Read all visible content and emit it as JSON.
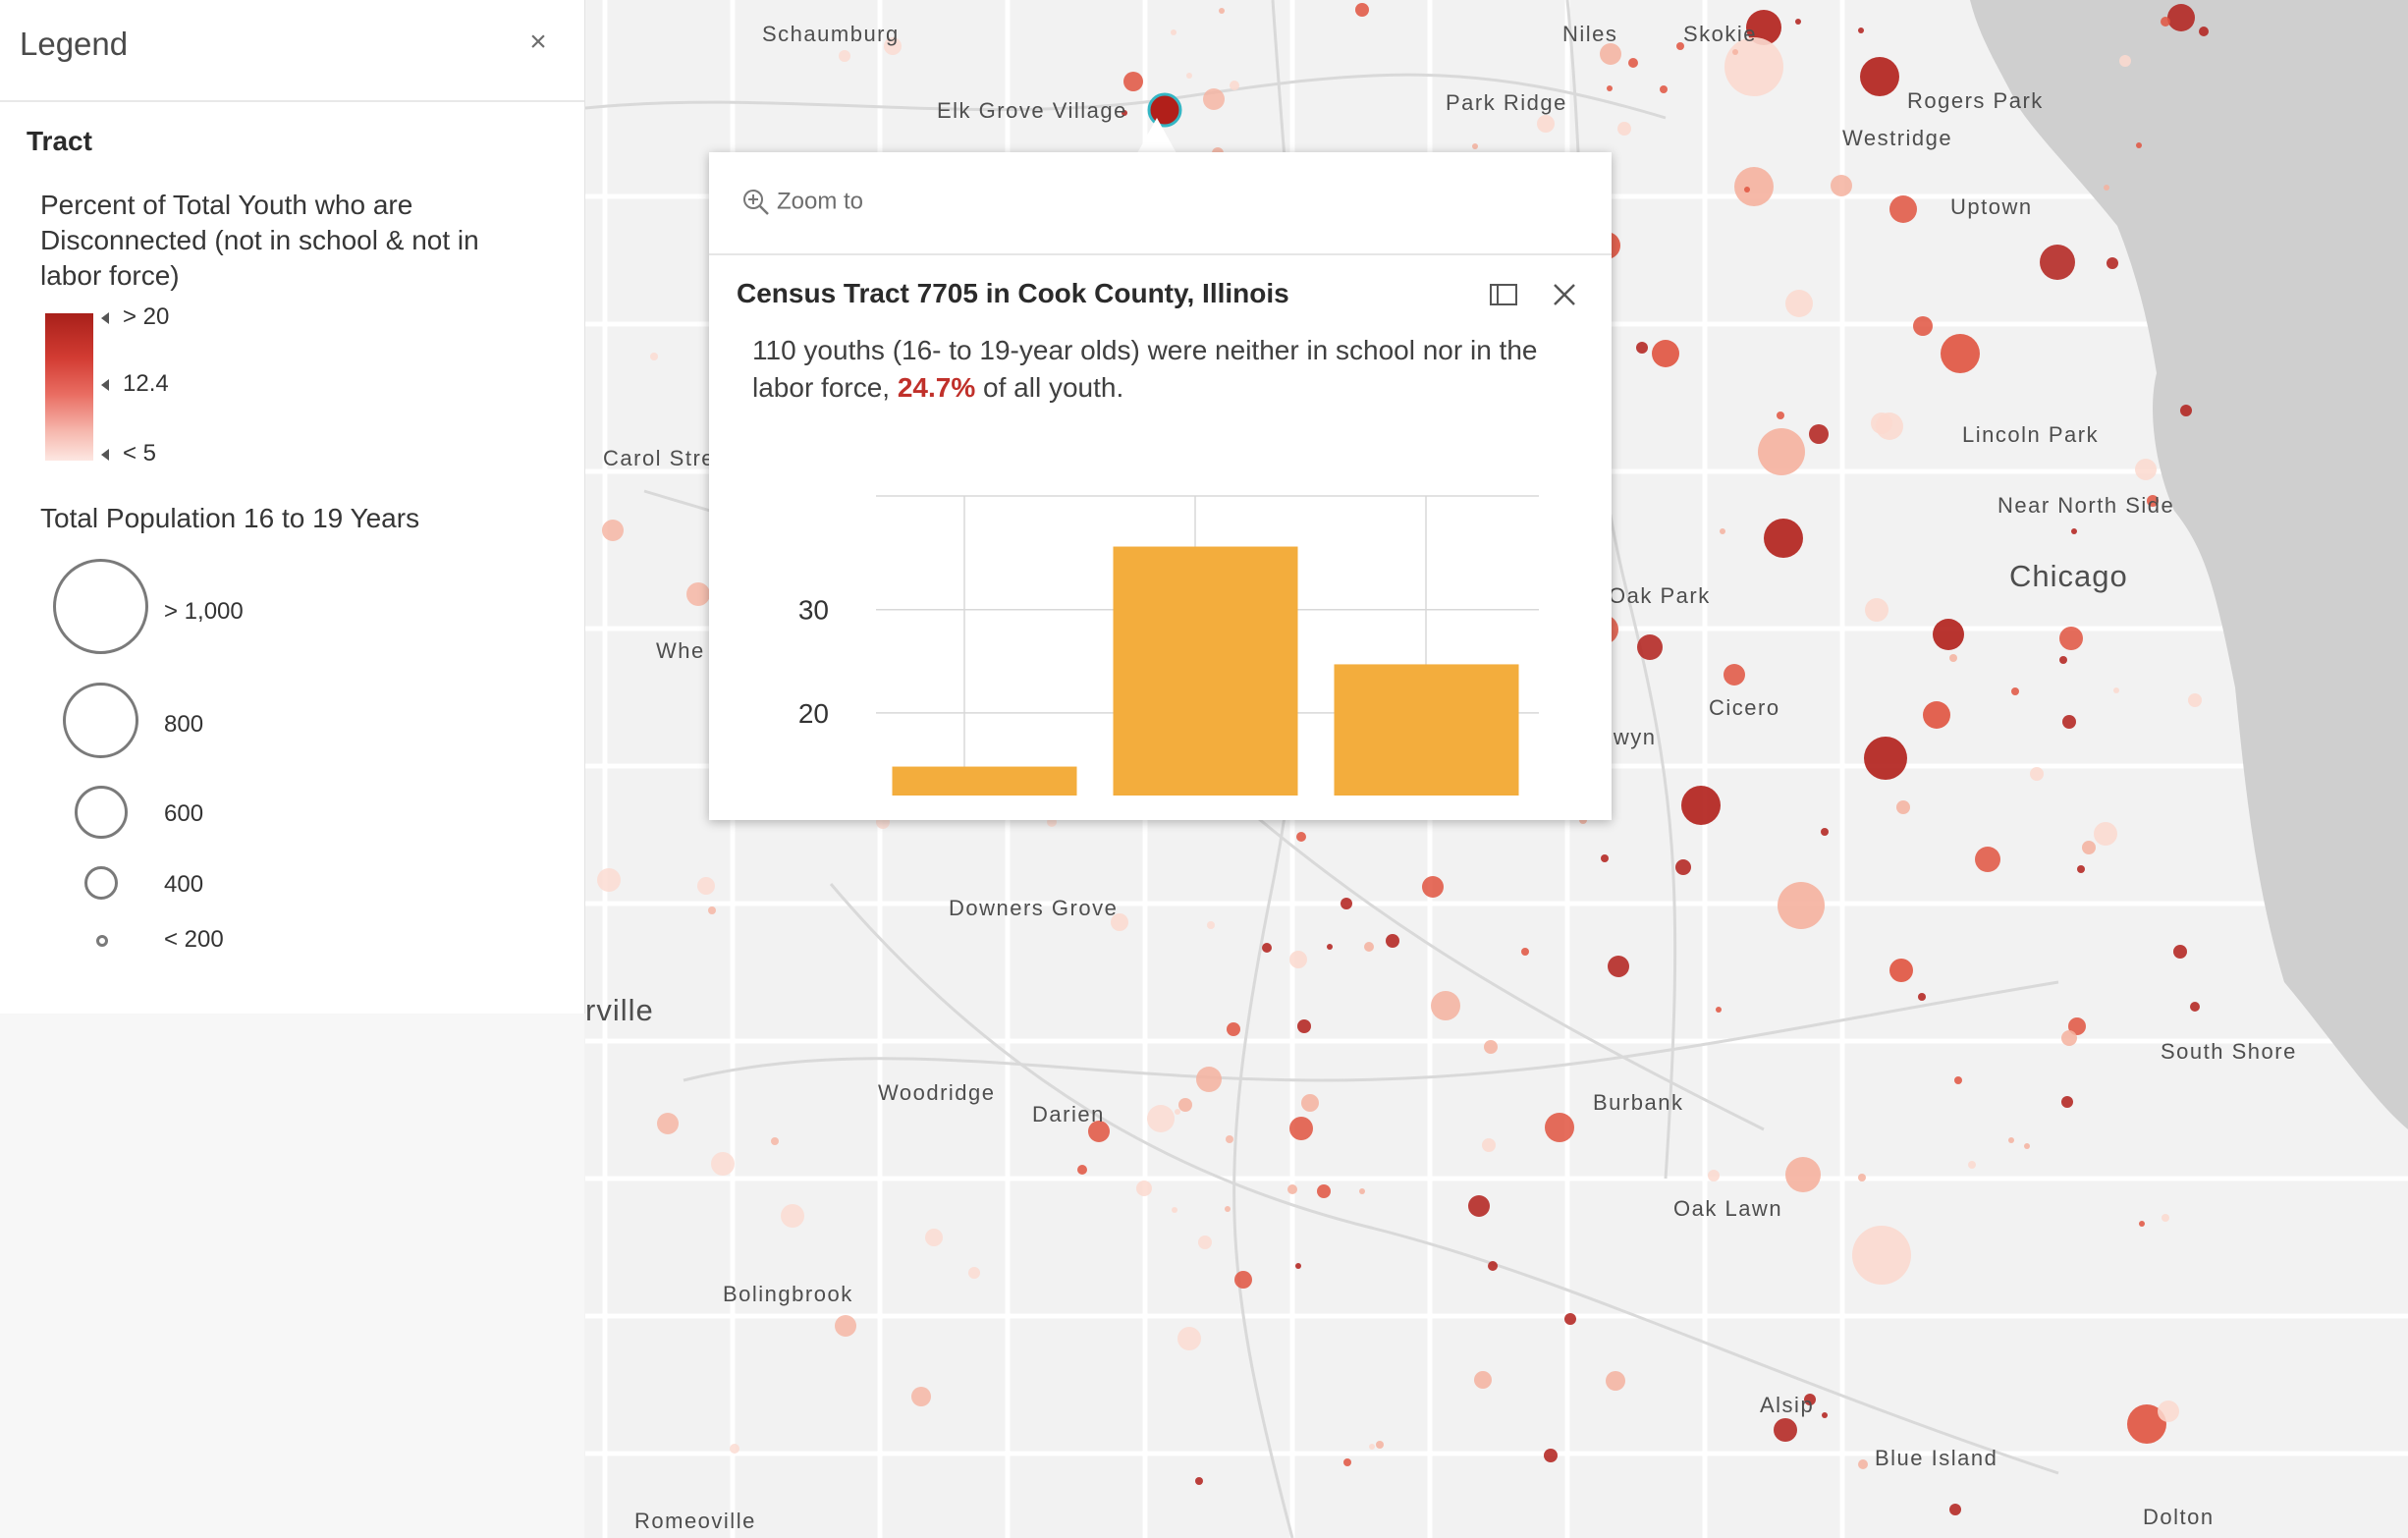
{
  "legend": {
    "title": "Legend",
    "layer_name": "Tract",
    "field1_label": "Percent of Total Youth who are Disconnected (not in school & not in labor force)",
    "ramp_labels": {
      "high": "> 20",
      "mid": "12.4",
      "low": "< 5"
    },
    "ramp_colors": {
      "high": "#a8201a",
      "low": "#fde7e2"
    },
    "field2_label": "Total Population 16 to 19 Years",
    "size_labels": [
      "> 1,000",
      "800",
      "600",
      "400",
      "< 200"
    ]
  },
  "map": {
    "cities": [
      "Schaumburg",
      "Elk Grove Village",
      "Niles",
      "Skokie",
      "Park Ridge",
      "Rogers Park",
      "Westridge",
      "Uptown",
      "Lincoln Park",
      "Near North Side",
      "Chicago",
      "Carol Stre",
      "Whe",
      "Oak Park",
      "Cicero",
      "rwyn",
      "Downers Grove",
      "rville",
      "Woodridge",
      "Darien",
      "Burbank",
      "Oak Lawn",
      "South Shore",
      "Bolingbrook",
      "Alsip",
      "Blue Island",
      "Romeoville",
      "Dolton"
    ],
    "water_color": "#cfcfcf",
    "symbol_colors": {
      "dark": "#b11f1a",
      "mid": "#e0533f",
      "light": "#f5b19f",
      "faint": "#fbd9cf"
    }
  },
  "popup": {
    "zoom_label": "Zoom to",
    "title": "Census Tract 7705 in Cook County, Illinois",
    "text_before": "110 youths (16- to 19-year olds) were neither in school nor in the labor force,",
    "highlight": "24.7%",
    "text_after": "of all youth."
  },
  "chart_data": {
    "type": "bar",
    "categories": [
      "",
      "",
      ""
    ],
    "values": [
      14.8,
      36.1,
      24.7
    ],
    "ylim": [
      12,
      41
    ],
    "yticks": [
      20,
      30
    ],
    "color": "#f3ad3d",
    "grid": true
  }
}
